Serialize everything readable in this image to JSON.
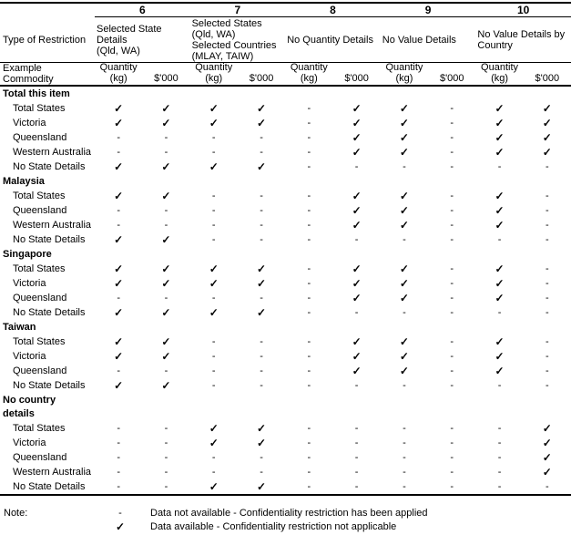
{
  "page": {
    "corner_top": "Type of Restriction",
    "corner_bottom": "Example Commodity"
  },
  "table": {
    "groups": [
      {
        "number": "6",
        "description": "Selected State\nDetails\n(Qld, WA)"
      },
      {
        "number": "7",
        "description": "Selected States\n(Qld, WA)\nSelected Countries\n(MLAY, TAIW)"
      },
      {
        "number": "8",
        "description": "No Quantity Details"
      },
      {
        "number": "9",
        "description": "No Value Details"
      },
      {
        "number": "10",
        "description": "No Value Details by\nCountry"
      }
    ],
    "measure_headers": {
      "quantity": "Quantity",
      "quantity_unit": "(kg)",
      "value": "$'000"
    },
    "sections": [
      {
        "title": "Total this item",
        "rows": [
          {
            "label": "Total States",
            "cells": [
              "✓",
              "✓",
              "✓",
              "✓",
              "-",
              "✓",
              "✓",
              "-",
              "✓",
              "✓"
            ]
          },
          {
            "label": "Victoria",
            "cells": [
              "✓",
              "✓",
              "✓",
              "✓",
              "-",
              "✓",
              "✓",
              "-",
              "✓",
              "✓"
            ]
          },
          {
            "label": "Queensland",
            "cells": [
              "-",
              "-",
              "-",
              "-",
              "-",
              "✓",
              "✓",
              "-",
              "✓",
              "✓"
            ]
          },
          {
            "label": "Western Australia",
            "cells": [
              "-",
              "-",
              "-",
              "-",
              "-",
              "✓",
              "✓",
              "-",
              "✓",
              "✓"
            ]
          },
          {
            "label": "No State Details",
            "cells": [
              "✓",
              "✓",
              "✓",
              "✓",
              "-",
              "-",
              "-",
              "-",
              "-",
              "-"
            ]
          }
        ]
      },
      {
        "title": "Malaysia",
        "rows": [
          {
            "label": "Total States",
            "cells": [
              "✓",
              "✓",
              "-",
              "-",
              "-",
              "✓",
              "✓",
              "-",
              "✓",
              "-"
            ]
          },
          {
            "label": "Queensland",
            "cells": [
              "-",
              "-",
              "-",
              "-",
              "-",
              "✓",
              "✓",
              "-",
              "✓",
              "-"
            ]
          },
          {
            "label": "Western Australia",
            "cells": [
              "-",
              "-",
              "-",
              "-",
              "-",
              "✓",
              "✓",
              "-",
              "✓",
              "-"
            ]
          },
          {
            "label": "No State Details",
            "cells": [
              "✓",
              "✓",
              "-",
              "-",
              "-",
              "-",
              "-",
              "-",
              "-",
              "-"
            ]
          }
        ]
      },
      {
        "title": "Singapore",
        "rows": [
          {
            "label": "Total States",
            "cells": [
              "✓",
              "✓",
              "✓",
              "✓",
              "-",
              "✓",
              "✓",
              "-",
              "✓",
              "-"
            ]
          },
          {
            "label": "Victoria",
            "cells": [
              "✓",
              "✓",
              "✓",
              "✓",
              "-",
              "✓",
              "✓",
              "-",
              "✓",
              "-"
            ]
          },
          {
            "label": "Queensland",
            "cells": [
              "-",
              "-",
              "-",
              "-",
              "-",
              "✓",
              "✓",
              "-",
              "✓",
              "-"
            ]
          },
          {
            "label": "No State Details",
            "cells": [
              "✓",
              "✓",
              "✓",
              "✓",
              "-",
              "-",
              "-",
              "-",
              "-",
              "-"
            ]
          }
        ]
      },
      {
        "title": "Taiwan",
        "rows": [
          {
            "label": "Total States",
            "cells": [
              "✓",
              "✓",
              "-",
              "-",
              "-",
              "✓",
              "✓",
              "-",
              "✓",
              "-"
            ]
          },
          {
            "label": "Victoria",
            "cells": [
              "✓",
              "✓",
              "-",
              "-",
              "-",
              "✓",
              "✓",
              "-",
              "✓",
              "-"
            ]
          },
          {
            "label": "Queensland",
            "cells": [
              "-",
              "-",
              "-",
              "-",
              "-",
              "✓",
              "✓",
              "-",
              "✓",
              "-"
            ]
          },
          {
            "label": "No State Details",
            "cells": [
              "✓",
              "✓",
              "-",
              "-",
              "-",
              "-",
              "-",
              "-",
              "-",
              "-"
            ]
          }
        ]
      },
      {
        "title": "No country\ndetails",
        "rows": [
          {
            "label": "Total States",
            "cells": [
              "-",
              "-",
              "✓",
              "✓",
              "-",
              "-",
              "-",
              "-",
              "-",
              "✓"
            ]
          },
          {
            "label": "Victoria",
            "cells": [
              "-",
              "-",
              "✓",
              "✓",
              "-",
              "-",
              "-",
              "-",
              "-",
              "✓"
            ]
          },
          {
            "label": "Queensland",
            "cells": [
              "-",
              "-",
              "-",
              "-",
              "-",
              "-",
              "-",
              "-",
              "-",
              "✓"
            ]
          },
          {
            "label": "Western Australia",
            "cells": [
              "-",
              "-",
              "-",
              "-",
              "-",
              "-",
              "-",
              "-",
              "-",
              "✓"
            ]
          },
          {
            "label": "No State Details",
            "cells": [
              "-",
              "-",
              "✓",
              "✓",
              "-",
              "-",
              "-",
              "-",
              "-",
              "-"
            ]
          }
        ]
      }
    ]
  },
  "legend": {
    "note_label": "Note:",
    "entries": [
      {
        "symbol": "-",
        "text": "Data not available - Confidentiality restriction has been applied"
      },
      {
        "symbol": "✓",
        "text": "Data available - Confidentiality restriction not applicable"
      }
    ]
  },
  "symbols": {
    "available": "✓",
    "not_available": "-"
  },
  "colors": {
    "text": "#000000",
    "background": "#ffffff"
  }
}
